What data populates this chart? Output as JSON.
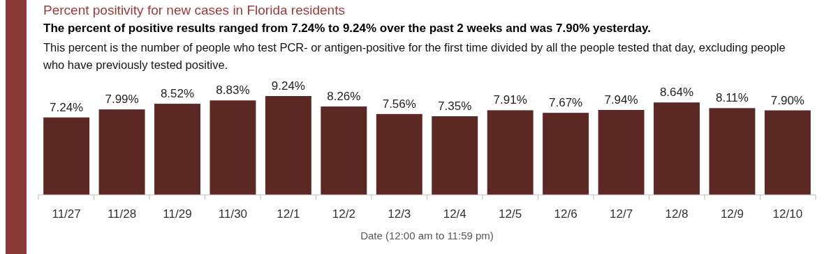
{
  "chart_data": {
    "type": "bar",
    "title": "Percent positivity for new cases in Florida residents",
    "subtitle": "The percent of positive results ranged from 7.24% to 9.24% over the past 2 weeks and was 7.90% yesterday.",
    "annotations": [
      "This percent is the number of people who test PCR- or antigen-positive for the first time divided by all the people tested that day, excluding people who have previously tested positive."
    ],
    "xlabel": "Date (12:00 am to 11:59 pm)",
    "categories": [
      "11/27",
      "11/28",
      "11/29",
      "11/30",
      "12/1",
      "12/2",
      "12/3",
      "12/4",
      "12/5",
      "12/6",
      "12/7",
      "12/8",
      "12/9",
      "12/10"
    ],
    "values": [
      7.24,
      7.99,
      8.52,
      8.83,
      9.24,
      8.26,
      7.56,
      7.35,
      7.91,
      7.67,
      7.94,
      8.64,
      8.11,
      7.9
    ],
    "value_labels": [
      "7.24%",
      "7.99%",
      "8.52%",
      "8.83%",
      "9.24%",
      "8.26%",
      "7.56%",
      "7.35%",
      "7.91%",
      "7.67%",
      "7.94%",
      "8.64%",
      "8.11%",
      "7.90%"
    ],
    "color": "#5c2824"
  }
}
